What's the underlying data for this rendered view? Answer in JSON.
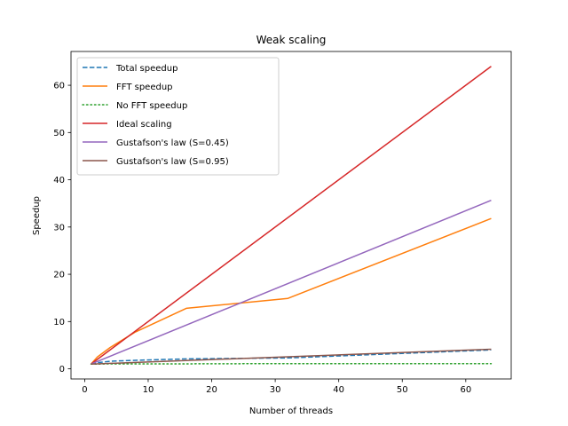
{
  "chart_data": {
    "type": "line",
    "title": "Weak scaling",
    "xlabel": "Number of threads",
    "ylabel": "Speedup",
    "xlim": [
      -2.15,
      67.15
    ],
    "ylim": [
      -2.15,
      67.15
    ],
    "xticks": [
      0,
      10,
      20,
      30,
      40,
      50,
      60
    ],
    "yticks": [
      0,
      10,
      20,
      30,
      40,
      50,
      60
    ],
    "grid": false,
    "legend_position": "top-left",
    "series": [
      {
        "name": "Total speedup",
        "color": "#1f77b4",
        "style": "dashed",
        "x": [
          1,
          2,
          4,
          8,
          16,
          32,
          64
        ],
        "y": [
          1.0,
          1.3,
          1.6,
          1.8,
          2.1,
          2.3,
          4.0
        ]
      },
      {
        "name": "FFT speedup",
        "color": "#ff7f0e",
        "style": "solid",
        "x": [
          1,
          2,
          4,
          8,
          16,
          32,
          64
        ],
        "y": [
          1.0,
          2.5,
          4.5,
          7.8,
          12.8,
          14.9,
          31.8
        ]
      },
      {
        "name": "No FFT speedup",
        "color": "#2ca02c",
        "style": "dotted",
        "x": [
          1,
          2,
          4,
          8,
          16,
          32,
          64
        ],
        "y": [
          1.0,
          1.0,
          1.05,
          1.05,
          1.05,
          1.1,
          1.1
        ]
      },
      {
        "name": "Ideal scaling",
        "color": "#d62728",
        "style": "solid",
        "x": [
          1,
          64
        ],
        "y": [
          1,
          64
        ]
      },
      {
        "name": "Gustafson's law (S=0.45)",
        "color": "#9467bd",
        "style": "solid",
        "x": [
          1,
          64
        ],
        "y": [
          1.0,
          35.65
        ]
      },
      {
        "name": "Gustafson's law (S=0.95)",
        "color": "#8c564b",
        "style": "solid",
        "x": [
          1,
          64
        ],
        "y": [
          1.0,
          4.15
        ]
      }
    ]
  }
}
